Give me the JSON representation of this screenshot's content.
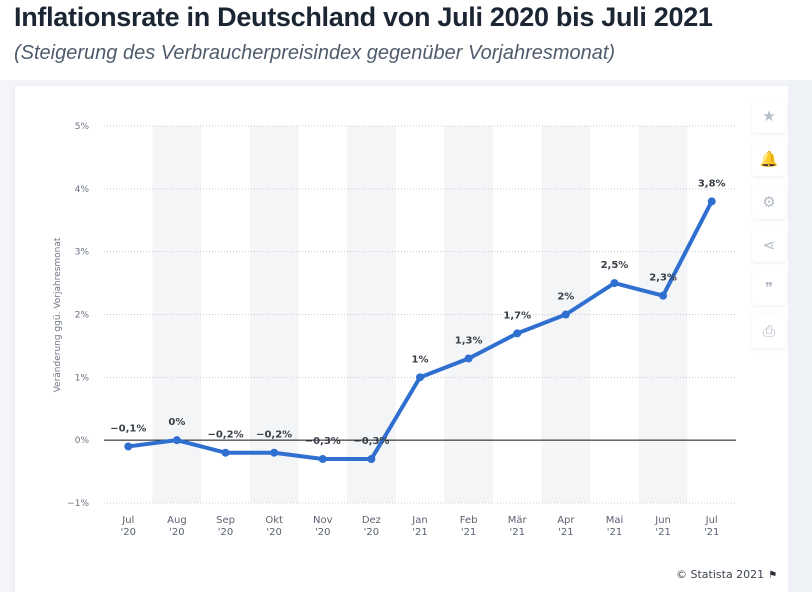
{
  "header": {
    "title": "Inflationsrate in Deutschland von Juli 2020 bis Juli 2021",
    "subtitle": "(Steigerung des Verbraucherpreisindex gegenüber Vorjahresmonat)"
  },
  "toolbar": {
    "buttons": [
      {
        "name": "favorite-button",
        "icon": "star-icon",
        "glyph": "★"
      },
      {
        "name": "notification-button",
        "icon": "bell-icon",
        "glyph": "🔔"
      },
      {
        "name": "settings-button",
        "icon": "gear-icon",
        "glyph": "⚙"
      },
      {
        "name": "share-button",
        "icon": "share-icon",
        "glyph": "⋖"
      },
      {
        "name": "cite-button",
        "icon": "quote-icon",
        "glyph": "❞"
      },
      {
        "name": "print-button",
        "icon": "printer-icon",
        "glyph": "⎙"
      }
    ]
  },
  "footer": {
    "credit": "© Statista 2021",
    "flag_icon": "flag-icon"
  },
  "colors": {
    "line": "#2f6fd0",
    "band": "#f4f5f7",
    "grid": "#c8ccd2",
    "zero_line": "#111111"
  },
  "chart_data": {
    "type": "line",
    "title": "Inflationsrate in Deutschland von Juli 2020 bis Juli 2021",
    "subtitle": "(Steigerung des Verbraucherpreisindex gegenüber Vorjahresmonat)",
    "xlabel": "",
    "ylabel": "Veränderung ggü. Vorjahresmonat",
    "categories": [
      [
        "Jul",
        "'20"
      ],
      [
        "Aug",
        "'20"
      ],
      [
        "Sep",
        "'20"
      ],
      [
        "Okt",
        "'20"
      ],
      [
        "Nov",
        "'20"
      ],
      [
        "Dez",
        "'20"
      ],
      [
        "Jan",
        "'21"
      ],
      [
        "Feb",
        "'21"
      ],
      [
        "Mär",
        "'21"
      ],
      [
        "Apr",
        "'21"
      ],
      [
        "Mai",
        "'21"
      ],
      [
        "Jun",
        "'21"
      ],
      [
        "Jul",
        "'21"
      ]
    ],
    "series": [
      {
        "name": "Inflationsrate",
        "values": [
          -0.1,
          0,
          -0.2,
          -0.2,
          -0.3,
          -0.3,
          1,
          1.3,
          1.7,
          2,
          2.5,
          2.3,
          3.8
        ],
        "labels": [
          "−0,1%",
          "0%",
          "−0,2%",
          "−0,2%",
          "−0,3%",
          "−0,3%",
          "1%",
          "1,3%",
          "1,7%",
          "2%",
          "2,5%",
          "2,3%",
          "3,8%"
        ]
      }
    ],
    "ylim": [
      -1,
      5
    ],
    "yticks": [
      5,
      4,
      3,
      2,
      1,
      0,
      -1
    ],
    "ytick_labels": [
      "5%",
      "4%",
      "3%",
      "2%",
      "1%",
      "0%",
      "−1%"
    ],
    "grid": true,
    "legend": "none",
    "source": "© Statista 2021"
  }
}
